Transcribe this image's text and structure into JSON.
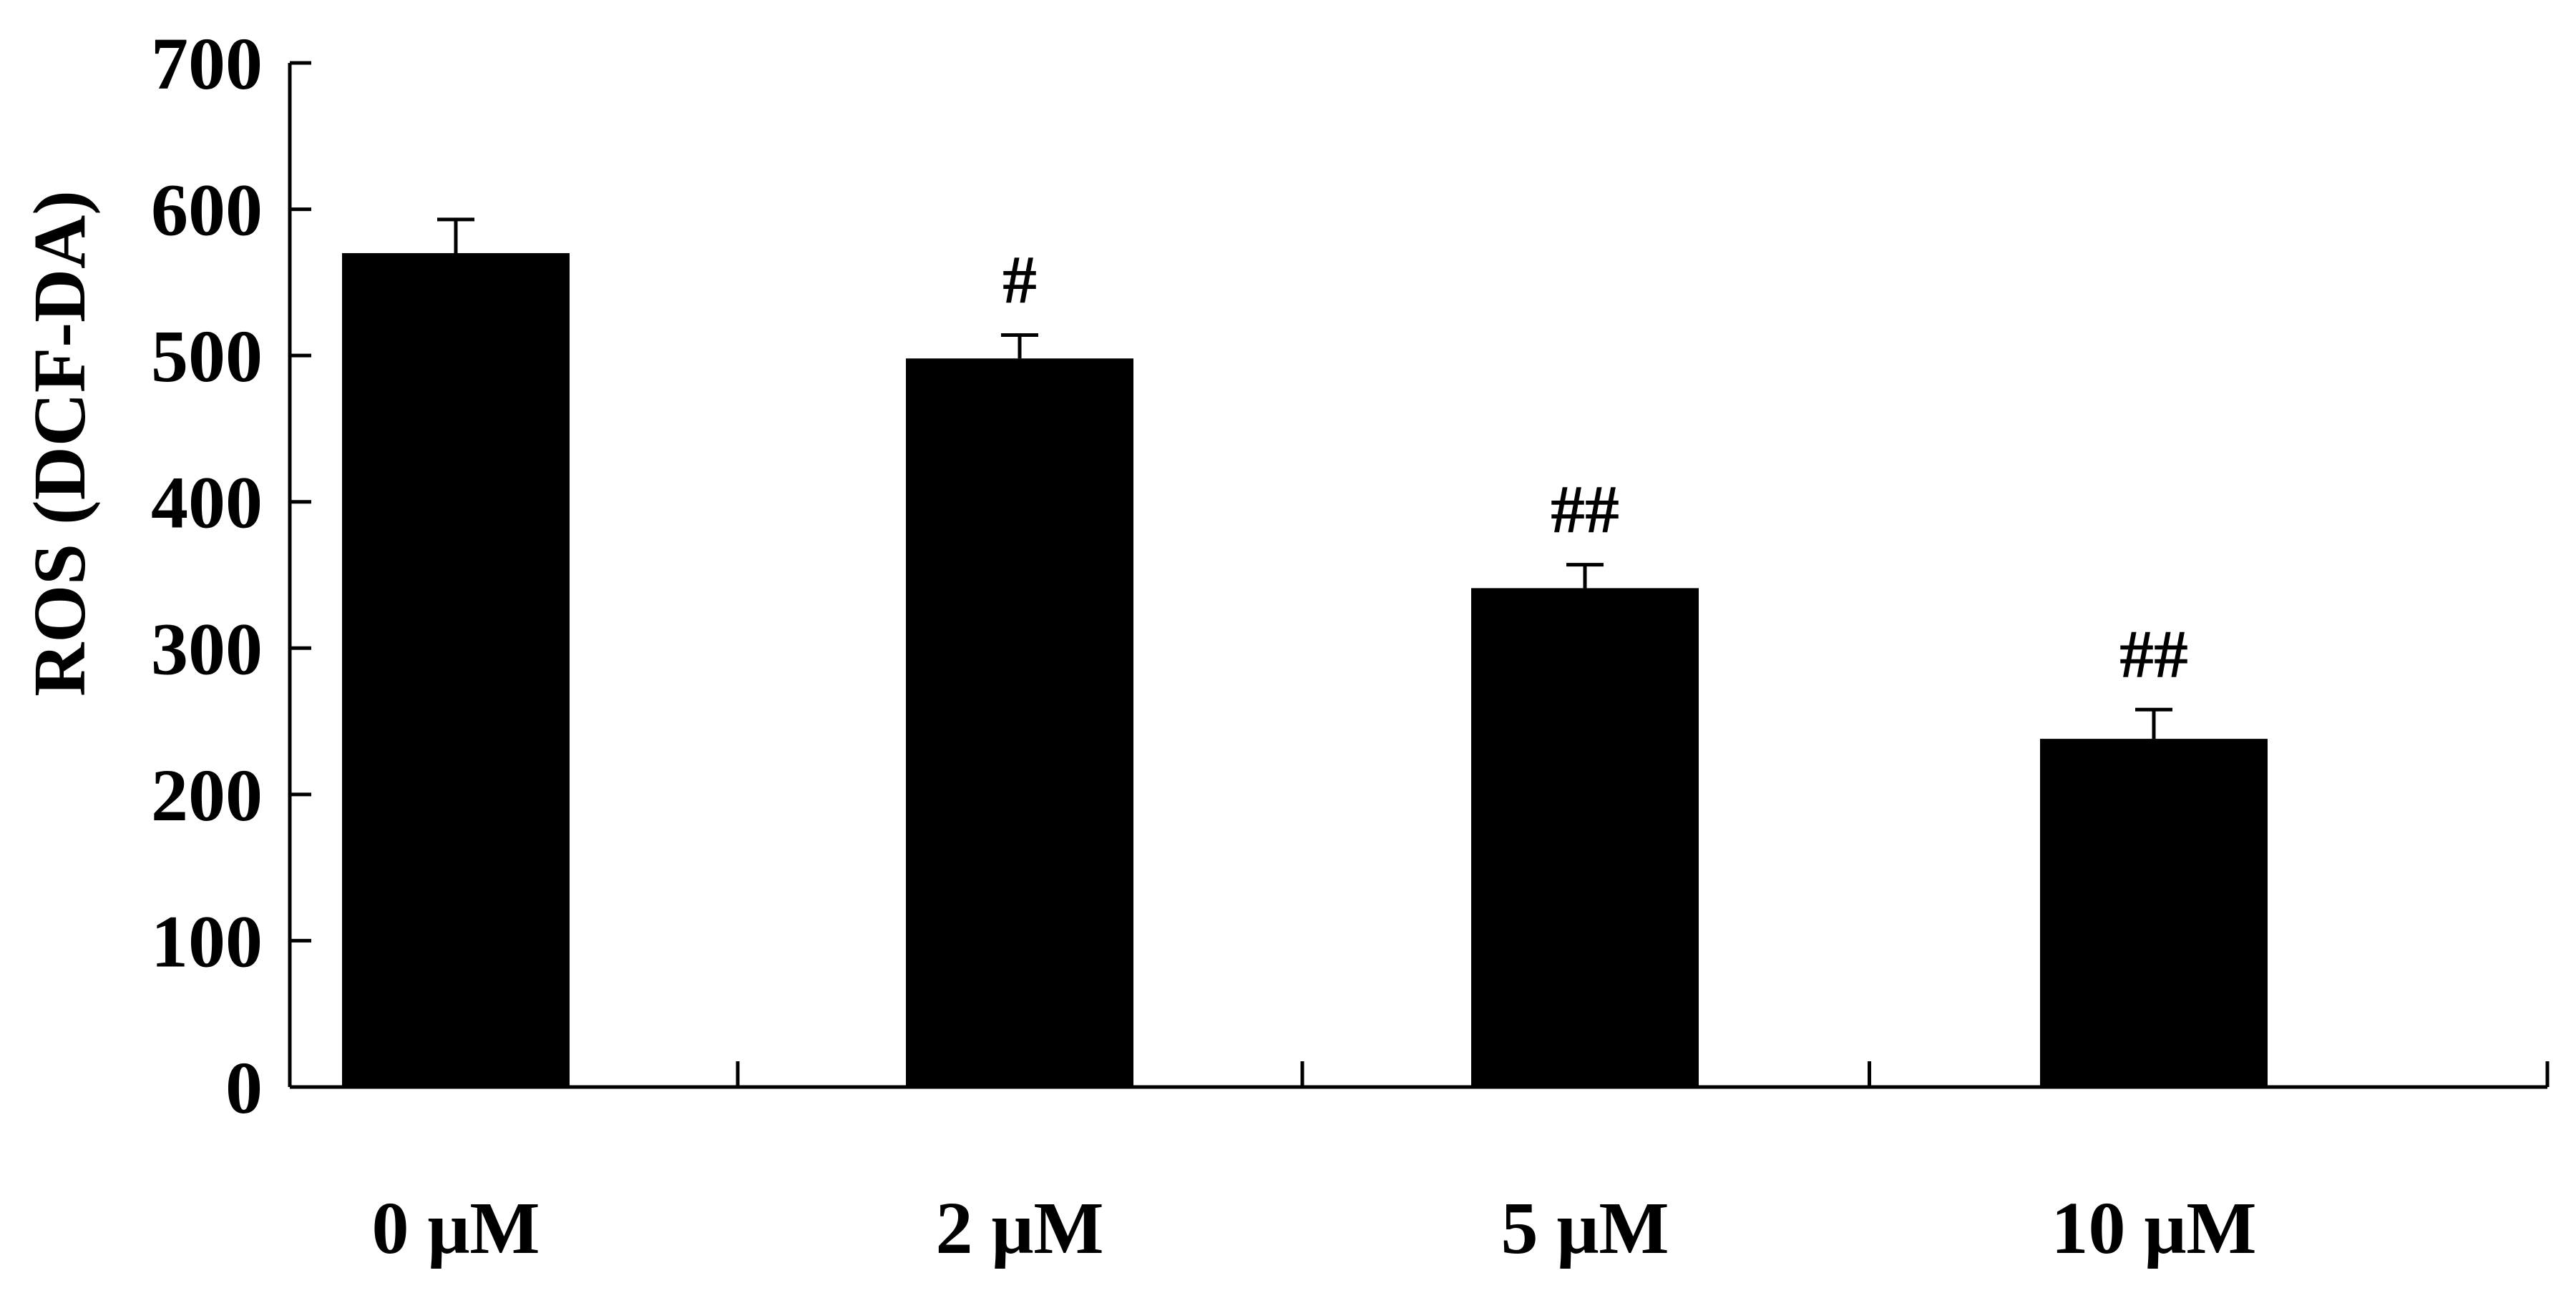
{
  "chart_data": {
    "type": "bar",
    "categories": [
      "0 μM",
      "2 μM",
      "5 μM",
      "10 μM"
    ],
    "series": [
      {
        "values": [
          570,
          498,
          341,
          238
        ],
        "errors": [
          23,
          16,
          16,
          20
        ]
      }
    ],
    "annotations": [
      "",
      "#",
      "##",
      "##"
    ],
    "ylabel": "ROS (DCF-DA)",
    "xlabel": "",
    "ylim": [
      0,
      700
    ],
    "yticks": [
      0,
      100,
      200,
      300,
      400,
      500,
      600,
      700
    ],
    "grid": false,
    "bar_color": "#000000"
  }
}
